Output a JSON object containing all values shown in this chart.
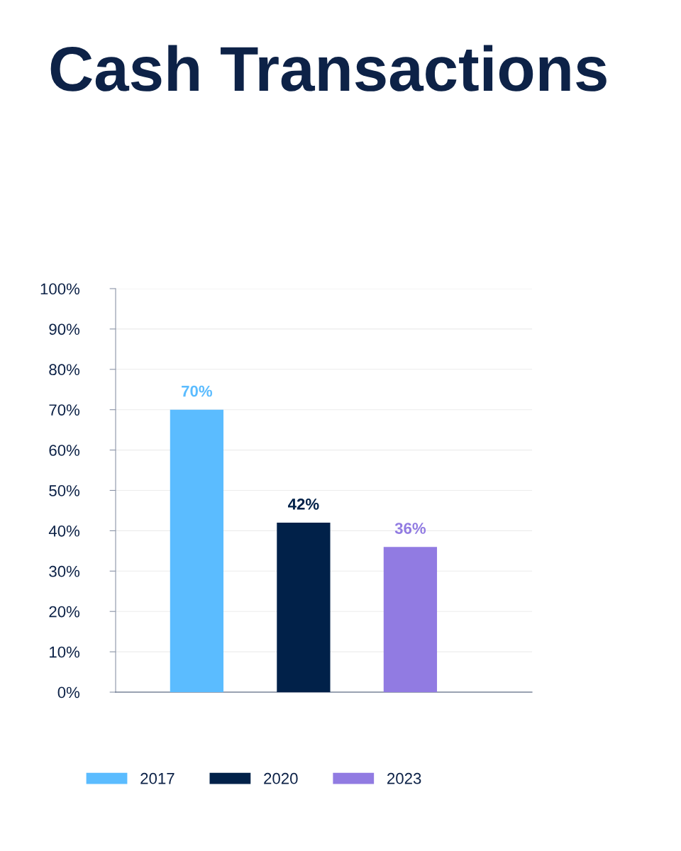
{
  "chart_data": {
    "type": "bar",
    "title": "Cash Transactions",
    "categories": [
      null,
      null,
      null
    ],
    "series": [
      {
        "name": "2017",
        "color": "#5bbcff",
        "values": [
          70,
          null,
          null
        ],
        "value_labels": [
          "70%",
          null,
          null
        ]
      },
      {
        "name": "2020",
        "color": "#012149",
        "values": [
          null,
          42,
          null
        ],
        "value_labels": [
          null,
          "42%",
          null
        ]
      },
      {
        "name": "2023",
        "color": "#917be2",
        "values": [
          null,
          null,
          36
        ],
        "value_labels": [
          null,
          null,
          "36%"
        ]
      }
    ],
    "ylim": [
      0,
      100
    ],
    "yticks": [
      {
        "value": 0,
        "label": "0%"
      },
      {
        "value": 10,
        "label": "10%"
      },
      {
        "value": 20,
        "label": "20%"
      },
      {
        "value": 30,
        "label": "30%"
      },
      {
        "value": 40,
        "label": "40%"
      },
      {
        "value": 50,
        "label": "50%"
      },
      {
        "value": 60,
        "label": "60%"
      },
      {
        "value": 70,
        "label": "70%"
      },
      {
        "value": 80,
        "label": "80%"
      },
      {
        "value": 90,
        "label": "90%"
      },
      {
        "value": 100,
        "label": "100%"
      }
    ],
    "grid": "y",
    "legend": "bottom"
  }
}
